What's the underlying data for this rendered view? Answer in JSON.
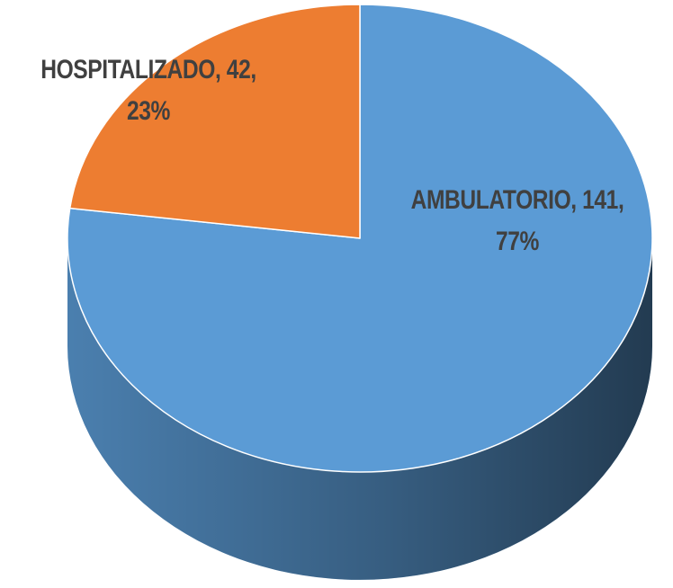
{
  "chart_data": {
    "type": "pie3d",
    "categories": [
      "AMBULATORIO",
      "HOSPITALIZADO"
    ],
    "values": [
      141,
      42
    ],
    "value_labels": [
      "AMBULATORIO, 141, 77%",
      "HOSPITALIZADO, 42, 23%"
    ],
    "colors": [
      "#5b9bd5",
      "#ed7d31"
    ]
  }
}
